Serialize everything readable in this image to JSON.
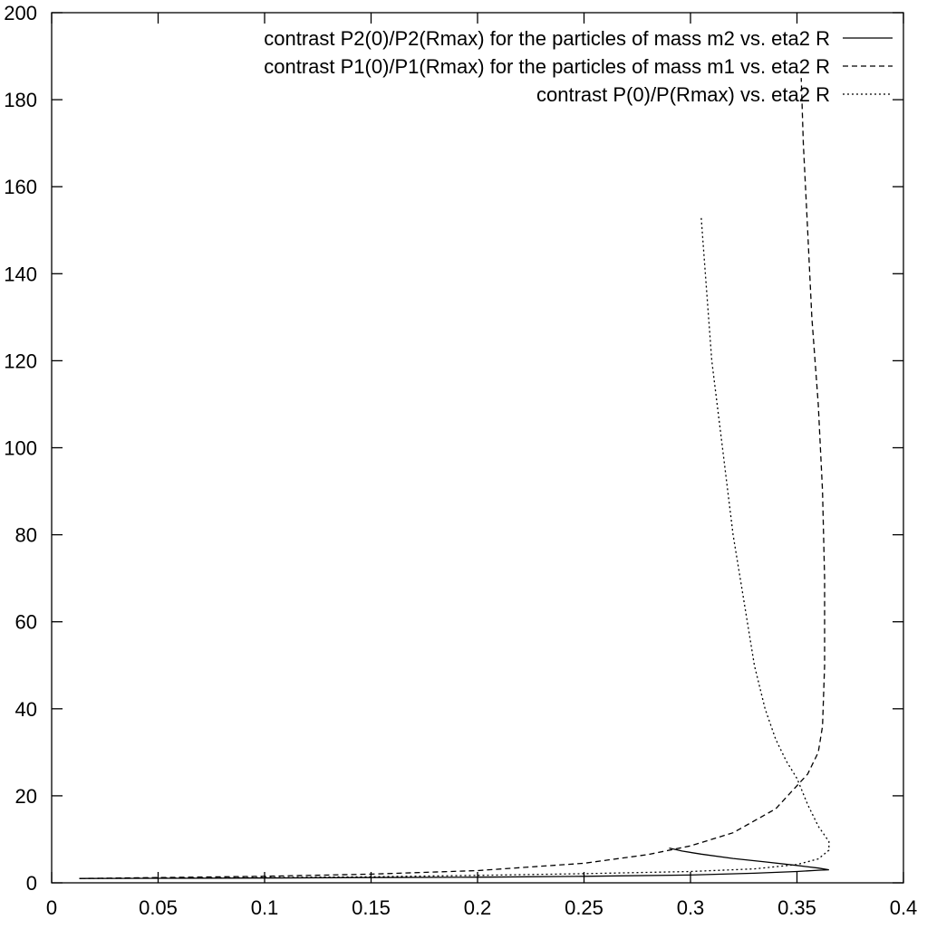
{
  "chart_data": {
    "type": "line",
    "title": "",
    "xlabel": "",
    "ylabel": "",
    "xlim": [
      0,
      0.4
    ],
    "ylim": [
      0,
      200
    ],
    "grid": false,
    "legend_position": "top-right",
    "x_ticks": [
      "0",
      "0.05",
      "0.1",
      "0.15",
      "0.2",
      "0.25",
      "0.3",
      "0.35",
      "0.4"
    ],
    "y_ticks": [
      "0",
      "20",
      "40",
      "60",
      "80",
      "100",
      "120",
      "140",
      "160",
      "180",
      "200"
    ],
    "series": [
      {
        "name": "contrast P2(0)/P2(Rmax) for the particles of mass m2 vs. eta2 R",
        "style": "solid",
        "points": [
          [
            0.013,
            1.0
          ],
          [
            0.05,
            1.05
          ],
          [
            0.1,
            1.1
          ],
          [
            0.15,
            1.2
          ],
          [
            0.2,
            1.3
          ],
          [
            0.25,
            1.5
          ],
          [
            0.3,
            1.8
          ],
          [
            0.33,
            2.2
          ],
          [
            0.35,
            2.6
          ],
          [
            0.36,
            2.9
          ],
          [
            0.365,
            3.0
          ],
          [
            0.36,
            3.4
          ],
          [
            0.35,
            4.0
          ],
          [
            0.335,
            4.8
          ],
          [
            0.32,
            5.6
          ],
          [
            0.305,
            6.6
          ],
          [
            0.296,
            7.3
          ],
          [
            0.29,
            8.0
          ]
        ]
      },
      {
        "name": "contrast P1(0)/P1(Rmax) for the particles of mass m1 vs. eta2 R",
        "style": "dashed",
        "points": [
          [
            0.013,
            1.0
          ],
          [
            0.05,
            1.2
          ],
          [
            0.1,
            1.5
          ],
          [
            0.15,
            2.0
          ],
          [
            0.2,
            2.8
          ],
          [
            0.25,
            4.5
          ],
          [
            0.28,
            6.5
          ],
          [
            0.3,
            8.5
          ],
          [
            0.32,
            11.5
          ],
          [
            0.34,
            17.0
          ],
          [
            0.355,
            25.0
          ],
          [
            0.36,
            30.0
          ],
          [
            0.362,
            36.0
          ],
          [
            0.363,
            50.0
          ],
          [
            0.363,
            70.0
          ],
          [
            0.362,
            90.0
          ],
          [
            0.36,
            110.0
          ],
          [
            0.357,
            130.0
          ],
          [
            0.355,
            150.0
          ],
          [
            0.353,
            170.0
          ],
          [
            0.352,
            185.0
          ]
        ]
      },
      {
        "name": "contrast P(0)/P(Rmax) vs. eta2 R",
        "style": "dotted",
        "points": [
          [
            0.013,
            1.0
          ],
          [
            0.05,
            1.1
          ],
          [
            0.1,
            1.2
          ],
          [
            0.15,
            1.4
          ],
          [
            0.2,
            1.7
          ],
          [
            0.25,
            2.1
          ],
          [
            0.3,
            2.6
          ],
          [
            0.33,
            3.2
          ],
          [
            0.35,
            4.2
          ],
          [
            0.36,
            5.5
          ],
          [
            0.365,
            7.5
          ],
          [
            0.365,
            9.5
          ],
          [
            0.36,
            13.0
          ],
          [
            0.355,
            18.0
          ],
          [
            0.35,
            24.0
          ],
          [
            0.345,
            28.0
          ],
          [
            0.34,
            33.0
          ],
          [
            0.335,
            40.0
          ],
          [
            0.33,
            50.0
          ],
          [
            0.325,
            65.0
          ],
          [
            0.32,
            80.0
          ],
          [
            0.315,
            100.0
          ],
          [
            0.31,
            120.0
          ],
          [
            0.307,
            140.0
          ],
          [
            0.305,
            153.0
          ]
        ]
      }
    ]
  }
}
